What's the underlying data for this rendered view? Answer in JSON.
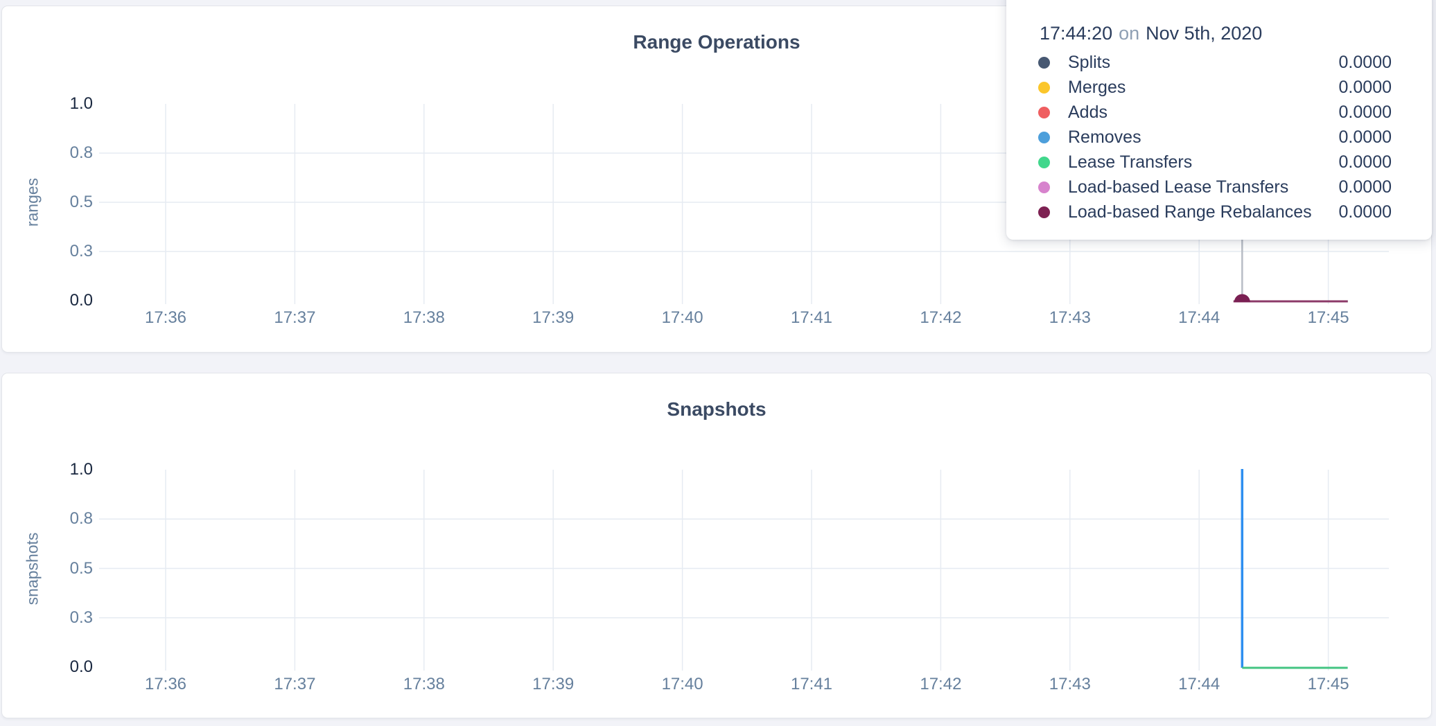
{
  "page": {
    "background_color": "#f2f3f8",
    "card_background_color": "#ffffff",
    "gridline_color": "#e6ebf2",
    "hover_line_color": "#b8bdc5"
  },
  "tooltip": {
    "time": "17:44:20",
    "connector": "on",
    "date": "Nov 5th, 2020",
    "rows": [
      {
        "label": "Splits",
        "value": "0.0000",
        "color": "#475872"
      },
      {
        "label": "Merges",
        "value": "0.0000",
        "color": "#FBC62B"
      },
      {
        "label": "Adds",
        "value": "0.0000",
        "color": "#EF5E60"
      },
      {
        "label": "Removes",
        "value": "0.0000",
        "color": "#4D9FDB"
      },
      {
        "label": "Lease Transfers",
        "value": "0.0000",
        "color": "#41D78C"
      },
      {
        "label": "Load-based Lease Transfers",
        "value": "0.0000",
        "color": "#D783CD"
      },
      {
        "label": "Load-based Range Rebalances",
        "value": "0.0000",
        "color": "#7D2152"
      }
    ]
  },
  "chart_data": [
    {
      "type": "line",
      "title": "Range Operations",
      "ylabel": "ranges",
      "ylim": [
        0,
        1
      ],
      "grid": true,
      "legend_position": "hover-tooltip",
      "yticks": [
        {
          "value": 0,
          "label": "0.0"
        },
        {
          "value": 0.25,
          "label": "0.3"
        },
        {
          "value": 0.5,
          "label": "0.5"
        },
        {
          "value": 0.75,
          "label": "0.8"
        },
        {
          "value": 1,
          "label": "1.0"
        }
      ],
      "xticks": [
        "17:36",
        "17:37",
        "17:38",
        "17:39",
        "17:40",
        "17:41",
        "17:42",
        "17:43",
        "17:44",
        "17:45"
      ],
      "series": [
        {
          "name": "Splits",
          "color": "#475872",
          "points": [
            [
              "17:44:16",
              0
            ],
            [
              "17:45:09",
              0
            ]
          ]
        },
        {
          "name": "Merges",
          "color": "#FBC62B",
          "points": [
            [
              "17:44:16",
              0
            ],
            [
              "17:45:09",
              0
            ]
          ]
        },
        {
          "name": "Adds",
          "color": "#EF5E60",
          "points": [
            [
              "17:44:16",
              0
            ],
            [
              "17:45:09",
              0
            ]
          ]
        },
        {
          "name": "Removes",
          "color": "#4D9FDB",
          "points": [
            [
              "17:44:16",
              0
            ],
            [
              "17:45:09",
              0
            ]
          ]
        },
        {
          "name": "Lease Transfers",
          "color": "#41D78C",
          "points": [
            [
              "17:44:16",
              0
            ],
            [
              "17:45:09",
              0
            ]
          ]
        },
        {
          "name": "Load-based Lease Transfers",
          "color": "#D783CD",
          "points": [
            [
              "17:44:16",
              0
            ],
            [
              "17:45:09",
              0
            ]
          ]
        },
        {
          "name": "Load-based Range Rebalances",
          "color": "#8C3A68",
          "points": [
            [
              "17:44:16",
              0
            ],
            [
              "17:45:09",
              0
            ]
          ]
        }
      ],
      "hover": {
        "time": "17:44:20",
        "value": 0,
        "dot_color": "#7A2053"
      }
    },
    {
      "type": "line",
      "title": "Snapshots",
      "ylabel": "snapshots",
      "ylim": [
        0,
        1
      ],
      "grid": true,
      "yticks": [
        {
          "value": 0,
          "label": "0.0"
        },
        {
          "value": 0.25,
          "label": "0.3"
        },
        {
          "value": 0.5,
          "label": "0.5"
        },
        {
          "value": 0.75,
          "label": "0.8"
        },
        {
          "value": 1,
          "label": "1.0"
        }
      ],
      "xticks": [
        "17:36",
        "17:37",
        "17:38",
        "17:39",
        "17:40",
        "17:41",
        "17:42",
        "17:43",
        "17:44",
        "17:45"
      ],
      "series": [
        {
          "color": "#2D8EF0",
          "width": 3.5,
          "points": [
            [
              "17:44:20",
              1
            ],
            [
              "17:44:20",
              0
            ]
          ]
        },
        {
          "color": "#44C482",
          "points": [
            [
              "17:44:20",
              0
            ],
            [
              "17:45:09",
              0
            ]
          ]
        }
      ]
    }
  ]
}
